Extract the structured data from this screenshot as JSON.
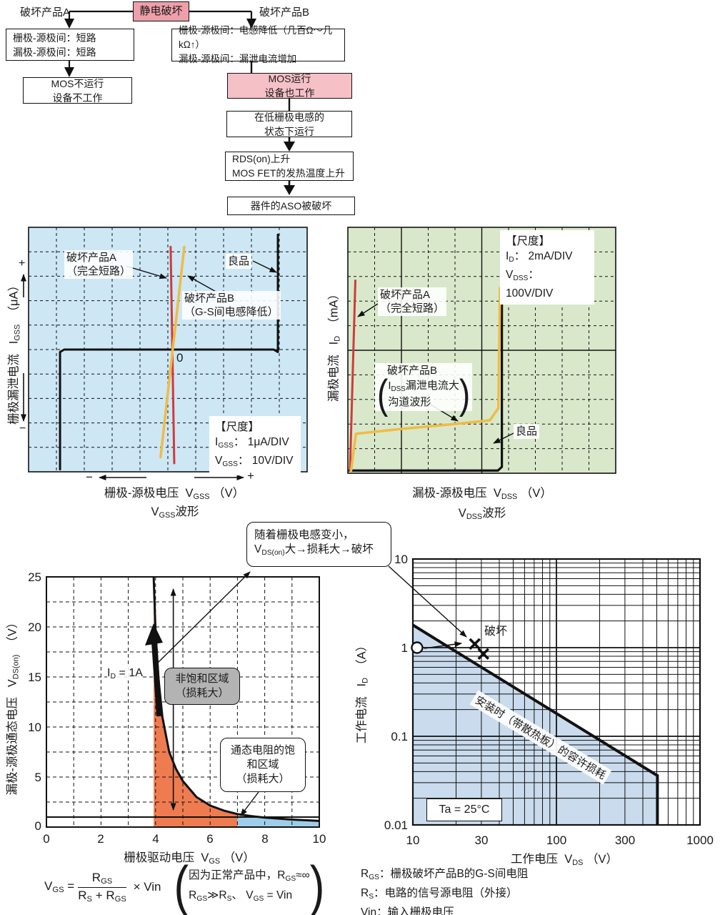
{
  "colors": {
    "pink_dark": "#ee9fa9",
    "pink_light": "#f6c0c7",
    "blue_bg": "#cde7f5",
    "green_bg": "#d9e8cb",
    "orange_fill": "#ee7c50",
    "lightblue_fill": "#9ecdea",
    "region_blue": "#c9dbed",
    "red_line": "#cf3b3c",
    "yellow_line": "#eebc45",
    "gray_box": "#b3b3b3",
    "line_black": "#111111"
  },
  "flowchart": {
    "branch_a_label": "破坏产品A",
    "root": "静电破坏",
    "branch_b_label": "破坏产品B",
    "box_a1": [
      "栅极-源极间：短路",
      "漏极-源极间：短路"
    ],
    "box_a2": [
      "MOS不运行",
      "设备不工作"
    ],
    "box_b1": [
      "栅极-源极间：电感降低（几百Ω～几kΩ↑）",
      "漏极-源极间：漏泄电流增加"
    ],
    "box_b2": [
      "MOS运行",
      "设备也工作"
    ],
    "box_b3": [
      "在低栅极电感的",
      "状态下运行"
    ],
    "box_b4": [
      "RDS(on)上升",
      "MOS FET的发热温度上升"
    ],
    "box_b5": "器件的ASO被破坏"
  },
  "blue_chart": {
    "label_a1": "破坏产品A",
    "label_a2": "（完全短路）",
    "label_b1": "破坏产品B",
    "label_b2": "（G-S间电感降低）",
    "label_good": "良品",
    "zero": "0",
    "scale_title": "【尺度】",
    "scale_i_name": "I",
    "scale_i_sub": "GSS",
    "scale_i_val": "：  1μA/DIV",
    "scale_v_name": "V",
    "scale_v_sub": "GSS",
    "scale_v_val": "：  10V/DIV",
    "minus": "−",
    "plus": "+",
    "x_label": "栅极-源极电压",
    "x_v": "V",
    "x_v_sub": "GSS",
    "x_unit": "（V）",
    "caption_v": "V",
    "caption_sub": "GSS",
    "caption_rest": "波形",
    "y_label": "栅极漏泄电流",
    "y_i": "I",
    "y_i_sub": "GSS",
    "y_unit": "（μA）",
    "y_plus": "+",
    "y_minus": "−"
  },
  "green_chart": {
    "scale_title": "【尺度】",
    "scale_i_name": "I",
    "scale_i_sub": "D",
    "scale_i_val": "：  2mA/DIV",
    "scale_v_name": "V",
    "scale_v_sub": "DSS",
    "scale_v_val": "：  100V/DIV",
    "label_a1": "破坏产品A",
    "label_a2": "（完全短路）",
    "label_b1": "破坏产品B",
    "label_b2a": "I",
    "label_b2sub": "DSS",
    "label_b2b": "漏泄电流大",
    "label_b3": "沟道波形",
    "label_good": "良品",
    "x_label": "漏极-源极电压",
    "x_v": "V",
    "x_v_sub": "DSS",
    "x_unit": "（V）",
    "caption_v": "V",
    "caption_sub": "DSS",
    "caption_rest": "波形",
    "y_label": "漏极电流",
    "y_i": "I",
    "y_i_sub": "D",
    "y_unit": "（mA）"
  },
  "bl_chart": {
    "y_ticks": [
      "25",
      "20",
      "15",
      "10",
      "5",
      "0"
    ],
    "x_ticks": [
      "0",
      "2",
      "4",
      "6",
      "8",
      "10"
    ],
    "y_label": "漏极-源极通态电压",
    "y_v": "V",
    "y_v_sub": "DS(on)",
    "y_unit": "（V）",
    "x_label": "栅极驱动电压",
    "x_v": "V",
    "x_v_sub": "GS",
    "x_unit": "（V）",
    "id_label_i": "I",
    "id_label_sub": "D",
    "id_label_rest": " = 1A",
    "gray_box_l1": "非饱和区域",
    "gray_box_l2": "（损耗大）",
    "sat_box_l1": "通态电阻的饱",
    "sat_box_l2": "和区域",
    "sat_box_l3": "（损耗大）",
    "callout_line1": "随着栅极电感变小，",
    "callout_v": "V",
    "callout_sub": "DS(on)",
    "callout_rest": "大→损耗大→破坏"
  },
  "br_chart": {
    "y_ticks": [
      "10",
      "1",
      "0.1",
      "0.01"
    ],
    "x_ticks": [
      "10",
      "30",
      "100",
      "300",
      "1000"
    ],
    "y_label": "工作电流",
    "y_i": "I",
    "y_i_sub": "D",
    "y_unit": "（A）",
    "x_label": "工作电压",
    "x_v": "V",
    "x_v_sub": "DS",
    "x_unit": "（V）",
    "destroy_label": "破坏",
    "ta_label": "Ta = 25°C",
    "diag_label": "安装时（带散热板）的容许损耗"
  },
  "formula": {
    "v": "V",
    "v_sub": "GS",
    "eq": " = ",
    "num_r": "R",
    "num_sub": "GS",
    "den_r1": "R",
    "den_sub1": "S",
    "plus": " + ",
    "den_r2": "R",
    "den_sub2": "GS",
    "times": "× Vin",
    "note1_pre": "因为正常产品中，",
    "note1_r": "R",
    "note1_sub": "GS",
    "note1_post": "≈∞",
    "note2_r1": "R",
    "note2_sub1": "GS",
    "note2_gg": "≫",
    "note2_r2": "R",
    "note2_sub2": "S",
    "note2_sep": "、 ",
    "note2_v": "V",
    "note2_vsub": "GS",
    "note2_end": " = Vin"
  },
  "legend": {
    "r1_name": "R",
    "r1_sub": "GS",
    "r1_text": "：栅极破坏产品B的G-S间电阻",
    "r2_name": "R",
    "r2_sub": "S",
    "r2_text": "：电路的信号源电阻（外接）",
    "r3_name": "Vin",
    "r3_text": "：输入栅极电压"
  },
  "chart_data": [
    {
      "id": "vgss_scope",
      "type": "line",
      "title": "VGSS波形",
      "xlabel": "栅极-源极电压 VGSS (V)",
      "ylabel": "栅极漏泄电流 IGSS (μA)",
      "x_scale": "10V/DIV",
      "y_scale": "1μA/DIV",
      "units": "scope divisions, origin at screen center",
      "series": [
        {
          "name": "良品",
          "colorKey": "line_black",
          "width": 3,
          "points": [
            [
              -4.05,
              -4.9
            ],
            [
              -4.05,
              -0.1
            ],
            [
              -3.9,
              0
            ],
            [
              3.62,
              0
            ],
            [
              3.77,
              -0.1
            ],
            [
              3.77,
              4.7
            ]
          ]
        },
        {
          "name": "破坏产品A（完全短路）",
          "colorKey": "red_line",
          "width": 3,
          "points": [
            [
              -0.08,
              4.2
            ],
            [
              0.05,
              -4.65
            ]
          ]
        },
        {
          "name": "破坏产品B（G-S间电感降低）",
          "colorKey": "yellow_line",
          "width": 3.5,
          "points": [
            [
              0.41,
              4.2
            ],
            [
              -0.44,
              -4.4
            ]
          ]
        }
      ]
    },
    {
      "id": "vdss_scope",
      "type": "line",
      "title": "VDSS波形",
      "xlabel": "漏极-源极电压 VDSS (V)",
      "ylabel": "漏极电流 ID (mA)",
      "x_scale": "100V/DIV",
      "y_scale": "2mA/DIV",
      "units": "scope divisions, origin at bottom-left",
      "series": [
        {
          "name": "良品",
          "colorKey": "line_black",
          "width": 3.2,
          "points": [
            [
              0.05,
              0.05
            ],
            [
              5.6,
              0.05
            ],
            [
              5.75,
              0.2
            ],
            [
              5.75,
              7.6
            ]
          ]
        },
        {
          "name": "破坏产品A（完全短路）",
          "colorKey": "red_line",
          "width": 3,
          "points": [
            [
              0.08,
              0.05
            ],
            [
              0.28,
              7.8
            ]
          ]
        },
        {
          "name": "破坏产品B（IDSS漏泄电流大，沟道波形）",
          "colorKey": "yellow_line",
          "width": 3.5,
          "points": [
            [
              0.12,
              0.05
            ],
            [
              0.3,
              1.55
            ],
            [
              2.0,
              1.75
            ],
            [
              4.0,
              1.95
            ],
            [
              5.3,
              2.1
            ],
            [
              5.62,
              2.6
            ],
            [
              5.68,
              7.5
            ]
          ]
        }
      ]
    },
    {
      "id": "vdson_vs_vgs",
      "type": "line",
      "xlabel": "栅极驱动电压 VGS (V)",
      "ylabel": "漏极-源极通态电压 VDS(on) (V)",
      "xlim": [
        0,
        10
      ],
      "ylim": [
        0,
        25
      ],
      "curve": [
        [
          3.93,
          25
        ],
        [
          4.0,
          19.5
        ],
        [
          4.1,
          15
        ],
        [
          4.25,
          11
        ],
        [
          4.5,
          7.5
        ],
        [
          4.75,
          5.8
        ],
        [
          5.0,
          4.6
        ],
        [
          5.5,
          3.0
        ],
        [
          6.0,
          2.15
        ],
        [
          6.5,
          1.65
        ],
        [
          7.0,
          1.3
        ],
        [
          7.5,
          1.1
        ],
        [
          8.0,
          0.95
        ],
        [
          9.0,
          0.75
        ],
        [
          10.0,
          0.62
        ]
      ],
      "ref_line_y": 1,
      "unsaturated_region_x": [
        3.93,
        7.0
      ],
      "saturated_region_x": [
        7.0,
        10.0
      ],
      "double_arrow": {
        "x": 4.65,
        "y1": 1,
        "y2": 24.5
      },
      "current_condition": "ID = 1A"
    },
    {
      "id": "aso_allowed_loss",
      "type": "line",
      "xlabel": "工作电压 VDS (V)",
      "ylabel": "工作电流 ID (A)",
      "xscale": "log",
      "yscale": "log",
      "xlim": [
        10,
        1000
      ],
      "ylim": [
        0.01,
        10
      ],
      "allowed_loss_line": [
        [
          10,
          1.8
        ],
        [
          505,
          0.036
        ],
        [
          505,
          0.01
        ]
      ],
      "operating_point": {
        "x": 10.7,
        "y": 1.0
      },
      "destroy_points": [
        [
          27,
          1.1
        ],
        [
          31,
          0.85
        ]
      ],
      "temperature": "Ta = 25°C"
    }
  ]
}
